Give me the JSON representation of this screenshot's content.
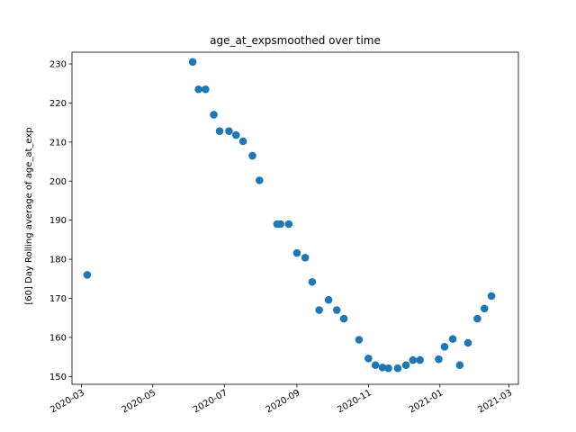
{
  "chart_data": {
    "type": "scatter",
    "title": "age_at_expsmoothed over time",
    "xlabel": "",
    "ylabel": "[60] Day Rolling average of age_at_exp",
    "x_axis_type": "date",
    "xlim": [
      "2020-02-22",
      "2021-03-09"
    ],
    "ylim": [
      148,
      233
    ],
    "grid": false,
    "marker_color": "#1f77b4",
    "x_ticks": [
      {
        "date": "2020-03-01",
        "label": "2020-03"
      },
      {
        "date": "2020-05-01",
        "label": "2020-05"
      },
      {
        "date": "2020-07-01",
        "label": "2020-07"
      },
      {
        "date": "2020-09-01",
        "label": "2020-09"
      },
      {
        "date": "2020-11-01",
        "label": "2020-11"
      },
      {
        "date": "2021-01-01",
        "label": "2021-01"
      },
      {
        "date": "2021-03-01",
        "label": "2021-03"
      }
    ],
    "y_ticks": [
      150,
      160,
      170,
      180,
      190,
      200,
      210,
      220,
      230
    ],
    "points": [
      {
        "x": "2020-03-06",
        "y": 176.0
      },
      {
        "x": "2020-06-04",
        "y": 230.5
      },
      {
        "x": "2020-06-09",
        "y": 223.5
      },
      {
        "x": "2020-06-15",
        "y": 223.5
      },
      {
        "x": "2020-06-22",
        "y": 217.0
      },
      {
        "x": "2020-06-27",
        "y": 212.8
      },
      {
        "x": "2020-07-05",
        "y": 212.8
      },
      {
        "x": "2020-07-11",
        "y": 211.8
      },
      {
        "x": "2020-07-17",
        "y": 210.2
      },
      {
        "x": "2020-07-25",
        "y": 206.5
      },
      {
        "x": "2020-07-31",
        "y": 200.2
      },
      {
        "x": "2020-08-15",
        "y": 189.0
      },
      {
        "x": "2020-08-18",
        "y": 189.0
      },
      {
        "x": "2020-08-25",
        "y": 189.0
      },
      {
        "x": "2020-09-01",
        "y": 181.6
      },
      {
        "x": "2020-09-08",
        "y": 180.4
      },
      {
        "x": "2020-09-14",
        "y": 174.2
      },
      {
        "x": "2020-09-20",
        "y": 167.0
      },
      {
        "x": "2020-09-28",
        "y": 169.6
      },
      {
        "x": "2020-10-05",
        "y": 167.0
      },
      {
        "x": "2020-10-11",
        "y": 164.8
      },
      {
        "x": "2020-10-24",
        "y": 159.4
      },
      {
        "x": "2020-11-01",
        "y": 154.6
      },
      {
        "x": "2020-11-07",
        "y": 152.9
      },
      {
        "x": "2020-11-13",
        "y": 152.3
      },
      {
        "x": "2020-11-18",
        "y": 152.1
      },
      {
        "x": "2020-11-26",
        "y": 152.1
      },
      {
        "x": "2020-12-03",
        "y": 152.9
      },
      {
        "x": "2020-12-09",
        "y": 154.2
      },
      {
        "x": "2020-12-15",
        "y": 154.2
      },
      {
        "x": "2020-12-31",
        "y": 154.4
      },
      {
        "x": "2021-01-05",
        "y": 157.6
      },
      {
        "x": "2021-01-12",
        "y": 159.6
      },
      {
        "x": "2021-01-18",
        "y": 152.9
      },
      {
        "x": "2021-01-25",
        "y": 158.6
      },
      {
        "x": "2021-02-02",
        "y": 164.8
      },
      {
        "x": "2021-02-08",
        "y": 167.4
      },
      {
        "x": "2021-02-14",
        "y": 170.6
      }
    ]
  }
}
